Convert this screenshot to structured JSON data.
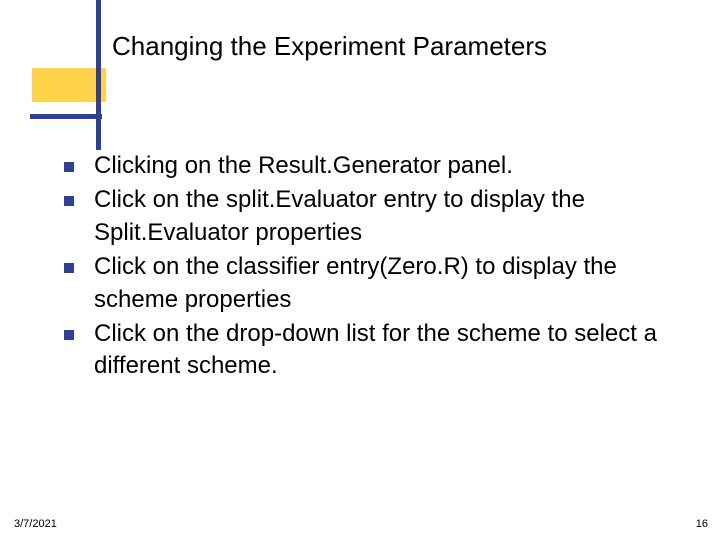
{
  "slide": {
    "title": "Changing the Experiment Parameters",
    "title_fontsize": 26,
    "title_color": "#000000",
    "body_fontsize": 24,
    "body_color": "#000000",
    "bullets": [
      "Clicking on the Result.Generator panel.",
      "Click on  the split.Evaluator entry to display the Split.Evaluator properties",
      "Click on the classifier entry(Zero.R)  to display the scheme properties",
      "Click on the drop-down list for the scheme to select a different scheme."
    ],
    "bullet_marker_color": "#2f3f93",
    "bullet_marker_size": 10,
    "decor": {
      "yellow_rect_color": "#ffd34a",
      "blue_bar_color": "#2f3f93"
    },
    "footer": {
      "date": "3/7/2021",
      "page": "16",
      "fontsize": 11,
      "color": "#000000"
    },
    "background_color": "#ffffff"
  }
}
